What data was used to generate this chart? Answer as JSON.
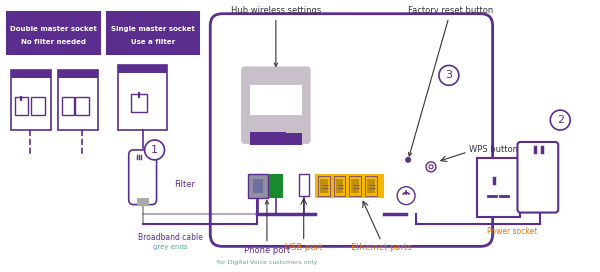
{
  "bg_color": "#ffffff",
  "purple_dark": "#5b2d8e",
  "purple_light": "#7b52a8",
  "purple_box": "#5b2d8e",
  "purple_text": "#5b2d8e",
  "orange_text": "#e8720c",
  "teal_text": "#5ba4a0",
  "gray": "#aaaaaa",
  "green": "#1a8a2e",
  "yellow": "#f5b800",
  "label_color": "#333333",
  "box1_label1": "Double master socket",
  "box1_label2": "No filter needed",
  "box2_label1": "Single master socket",
  "box2_label2": "Use a filter",
  "lbl_filter": "Filter",
  "lbl_broadband": "Broadband cable",
  "lbl_broadband2": "grey ends",
  "lbl_hub_wireless": "Hub wireless settings",
  "lbl_factory_reset": "Factory reset button",
  "lbl_wps": "WPS button",
  "lbl_power_socket": "Power socket",
  "lbl_phone_port": "Phone port",
  "lbl_phone_port2": "for Digital Voice customers only",
  "lbl_usb_port": "USB port",
  "lbl_ethernet": "Ethernet ports"
}
